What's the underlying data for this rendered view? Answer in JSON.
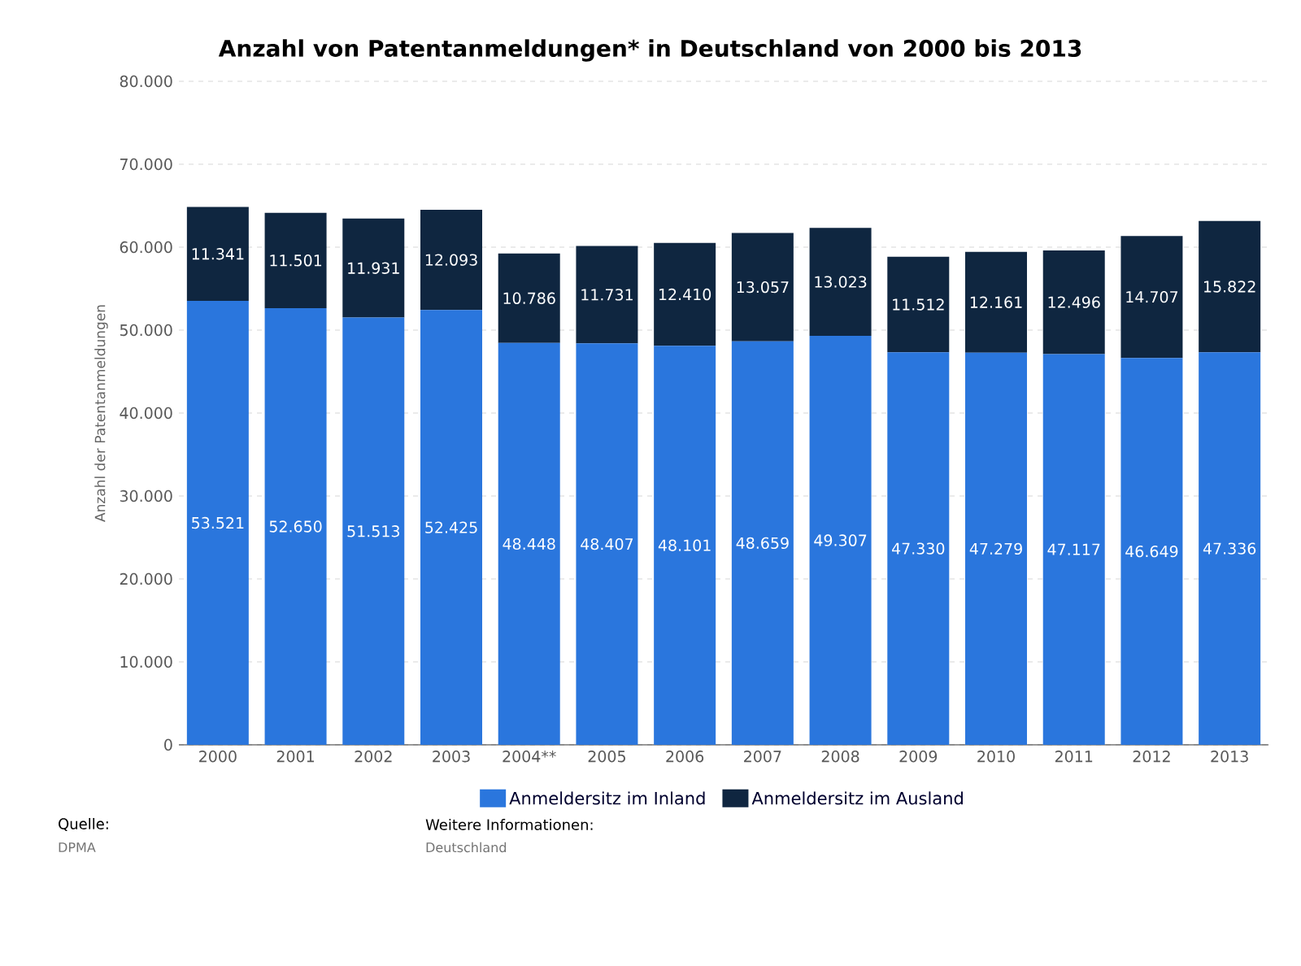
{
  "chart_data": {
    "type": "bar",
    "stacked": true,
    "title": "Anzahl von Patentanmeldungen* in Deutschland von 2000 bis 2013",
    "ylabel": "Anzahl der Patentanmeldungen",
    "categories": [
      "2000",
      "2001",
      "2002",
      "2003",
      "2004**",
      "2005",
      "2006",
      "2007",
      "2008",
      "2009",
      "2010",
      "2011",
      "2012",
      "2013"
    ],
    "series": [
      {
        "name": "Anmeldersitz im Inland",
        "color": "#2a76dd",
        "values": [
          53521,
          52650,
          51513,
          52425,
          48448,
          48407,
          48101,
          48659,
          49307,
          47330,
          47279,
          47117,
          46649,
          47336
        ],
        "value_labels": [
          "53.521",
          "52.650",
          "51.513",
          "52.425",
          "48.448",
          "48.407",
          "48.101",
          "48.659",
          "49.307",
          "47.330",
          "47.279",
          "47.117",
          "46.649",
          "47.336"
        ]
      },
      {
        "name": "Anmeldersitz im Ausland",
        "color": "#0f2640",
        "values": [
          11341,
          11501,
          11931,
          12093,
          10786,
          11731,
          12410,
          13057,
          13023,
          11512,
          12161,
          12496,
          14707,
          15822
        ],
        "value_labels": [
          "11.341",
          "11.501",
          "11.931",
          "12.093",
          "10.786",
          "11.731",
          "12.410",
          "13.057",
          "13.023",
          "11.512",
          "12.161",
          "12.496",
          "14.707",
          "15.822"
        ]
      }
    ],
    "ylim": [
      0,
      80000
    ],
    "yticks": [
      0,
      {
        "value": 10000,
        "label": "10.000"
      },
      {
        "value": 20000,
        "label": "20.000"
      },
      {
        "value": 30000,
        "label": "30.000"
      },
      {
        "value": 40000,
        "label": "40.000"
      },
      {
        "value": 50000,
        "label": "50.000"
      },
      {
        "value": 60000,
        "label": "60.000"
      },
      {
        "value": 70000,
        "label": "70.000"
      },
      {
        "value": 80000,
        "label": "80.000"
      }
    ],
    "grid": "y",
    "legend": "bottom",
    "annotations": [
      "Quelle:",
      "DPMA",
      "Weitere Informationen:",
      "Deutschland"
    ]
  }
}
